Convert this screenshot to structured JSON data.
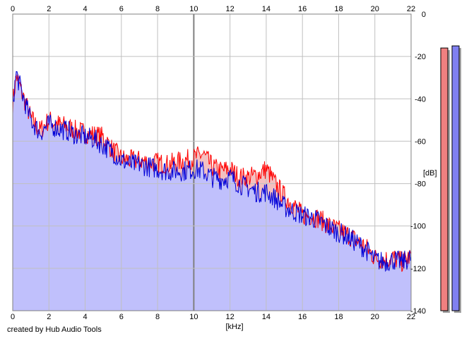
{
  "credit": "created by Hub Audio Tools",
  "chart_data": {
    "type": "area",
    "title": "",
    "xlabel": "[kHz]",
    "ylabel": "[dB]",
    "xlim": [
      0,
      22
    ],
    "ylim": [
      -140,
      0
    ],
    "x_ticks": [
      0,
      2,
      4,
      6,
      8,
      10,
      12,
      14,
      16,
      18,
      20,
      22
    ],
    "y_ticks": [
      0,
      -20,
      -40,
      -60,
      -80,
      -100,
      -120,
      -140
    ],
    "x_tick_labels_top": true,
    "x_tick_labels_bottom": true,
    "y_axis_side": "right",
    "grid": true,
    "colors": {
      "left": "#ff0000",
      "right": "#0000d8",
      "fill": "#c0c0fc",
      "meter_left": "#f08080",
      "meter_right": "#8080f0"
    },
    "series": [
      {
        "channel": "left",
        "x": [
          0,
          0.2,
          0.5,
          1,
          1.5,
          2,
          2.5,
          3,
          3.5,
          4,
          4.5,
          5,
          5.5,
          6,
          6.5,
          7,
          7.5,
          8,
          8.5,
          9,
          9.5,
          10,
          10.5,
          11,
          11.5,
          12,
          12.5,
          13,
          13.5,
          14,
          14.5,
          15,
          15.5,
          16,
          16.5,
          17,
          17.5,
          18,
          18.5,
          19,
          19.5,
          20,
          20.5,
          21,
          21.5,
          22
        ],
        "y": [
          -42,
          -29,
          -37,
          -49,
          -55,
          -50,
          -52,
          -53,
          -55,
          -56,
          -57,
          -58,
          -64,
          -68,
          -69,
          -69,
          -70,
          -70,
          -71,
          -70,
          -69,
          -68,
          -66,
          -72,
          -74,
          -73,
          -77,
          -77,
          -76,
          -73,
          -80,
          -86,
          -90,
          -95,
          -95,
          -97,
          -100,
          -102,
          -104,
          -107,
          -110,
          -115,
          -116,
          -115,
          -117,
          -114
        ]
      },
      {
        "channel": "right",
        "x": [
          0,
          0.2,
          0.5,
          1,
          1.5,
          2,
          2.5,
          3,
          3.5,
          4,
          4.5,
          5,
          5.5,
          6,
          6.5,
          7,
          7.5,
          8,
          8.5,
          9,
          9.5,
          10,
          10.5,
          11,
          11.5,
          12,
          12.5,
          13,
          13.5,
          14,
          14.5,
          15,
          15.5,
          16,
          16.5,
          17,
          17.5,
          18,
          18.5,
          19,
          19.5,
          20,
          20.5,
          21,
          21.5,
          22
        ],
        "y": [
          -42,
          -28,
          -37,
          -50,
          -56,
          -52,
          -54,
          -55,
          -57,
          -58,
          -59,
          -62,
          -65,
          -69,
          -71,
          -71,
          -72,
          -73,
          -74,
          -74,
          -74,
          -73,
          -74,
          -77,
          -78,
          -77,
          -80,
          -82,
          -84,
          -84,
          -87,
          -91,
          -93,
          -95,
          -96,
          -98,
          -101,
          -103,
          -105,
          -108,
          -111,
          -116,
          -117,
          -116,
          -117,
          -115
        ]
      }
    ],
    "level_meters": [
      {
        "channel": "left",
        "peak_db": -16
      },
      {
        "channel": "right",
        "peak_db": -15
      }
    ]
  }
}
